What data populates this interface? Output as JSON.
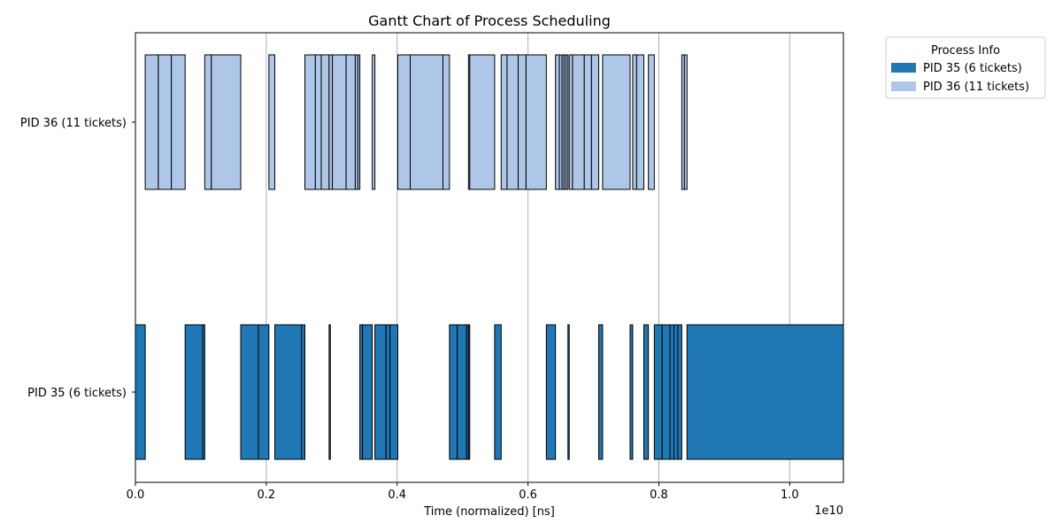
{
  "chart_data": {
    "type": "gantt",
    "title": "Gantt Chart of Process Scheduling",
    "xlabel": "Time (normalized) [ns]",
    "x_offset_label": "1e10",
    "x_multiplier": 10000000000,
    "xlim": [
      0.0,
      1.082
    ],
    "xticks": [
      "0.0",
      "0.2",
      "0.4",
      "0.6",
      "0.8",
      "1.0"
    ],
    "xtick_values": [
      0.0,
      0.2,
      0.4,
      0.6,
      0.8,
      1.0
    ],
    "grid": "x-major",
    "legend": {
      "title": "Process Info",
      "placement": "outside-upper-right",
      "entries": [
        "PID 35 (6 tickets)",
        "PID 36 (11 tickets)"
      ]
    },
    "categories": [
      "PID 36 (11 tickets)",
      "PID 35 (6 tickets)"
    ],
    "series": [
      {
        "name": "PID 35 (6 tickets)",
        "color": "#1f77b4",
        "row": 1,
        "intervals": [
          [
            0.0,
            0.015
          ],
          [
            0.076,
            0.104
          ],
          [
            0.103,
            0.106
          ],
          [
            0.161,
            0.188
          ],
          [
            0.188,
            0.204
          ],
          [
            0.213,
            0.255
          ],
          [
            0.254,
            0.259
          ],
          [
            0.296,
            0.298
          ],
          [
            0.343,
            0.347
          ],
          [
            0.347,
            0.362
          ],
          [
            0.366,
            0.383
          ],
          [
            0.383,
            0.389
          ],
          [
            0.389,
            0.401
          ],
          [
            0.48,
            0.492
          ],
          [
            0.492,
            0.506
          ],
          [
            0.506,
            0.509
          ],
          [
            0.509,
            0.511
          ],
          [
            0.549,
            0.559
          ],
          [
            0.628,
            0.642
          ],
          [
            0.661,
            0.663
          ],
          [
            0.708,
            0.714
          ],
          [
            0.756,
            0.76
          ],
          [
            0.777,
            0.784
          ],
          [
            0.793,
            0.805
          ],
          [
            0.805,
            0.817
          ],
          [
            0.817,
            0.823
          ],
          [
            0.823,
            0.829
          ],
          [
            0.829,
            0.835
          ],
          [
            0.843,
            1.082
          ]
        ]
      },
      {
        "name": "PID 36 (11 tickets)",
        "color": "#aec7e8",
        "row": 0,
        "intervals": [
          [
            0.015,
            0.035
          ],
          [
            0.035,
            0.055
          ],
          [
            0.055,
            0.076
          ],
          [
            0.106,
            0.116
          ],
          [
            0.116,
            0.161
          ],
          [
            0.204,
            0.213
          ],
          [
            0.259,
            0.275
          ],
          [
            0.275,
            0.284
          ],
          [
            0.284,
            0.296
          ],
          [
            0.296,
            0.301
          ],
          [
            0.301,
            0.322
          ],
          [
            0.322,
            0.336
          ],
          [
            0.336,
            0.34
          ],
          [
            0.34,
            0.343
          ],
          [
            0.362,
            0.366
          ],
          [
            0.401,
            0.42
          ],
          [
            0.42,
            0.47
          ],
          [
            0.47,
            0.48
          ],
          [
            0.509,
            0.511
          ],
          [
            0.511,
            0.549
          ],
          [
            0.559,
            0.568
          ],
          [
            0.568,
            0.585
          ],
          [
            0.585,
            0.597
          ],
          [
            0.597,
            0.628
          ],
          [
            0.642,
            0.648
          ],
          [
            0.648,
            0.652
          ],
          [
            0.652,
            0.655
          ],
          [
            0.655,
            0.658
          ],
          [
            0.658,
            0.661
          ],
          [
            0.663,
            0.668
          ],
          [
            0.668,
            0.686
          ],
          [
            0.686,
            0.697
          ],
          [
            0.697,
            0.708
          ],
          [
            0.714,
            0.756
          ],
          [
            0.76,
            0.766
          ],
          [
            0.766,
            0.777
          ],
          [
            0.784,
            0.793
          ],
          [
            0.835,
            0.839
          ],
          [
            0.839,
            0.843
          ]
        ]
      }
    ]
  }
}
